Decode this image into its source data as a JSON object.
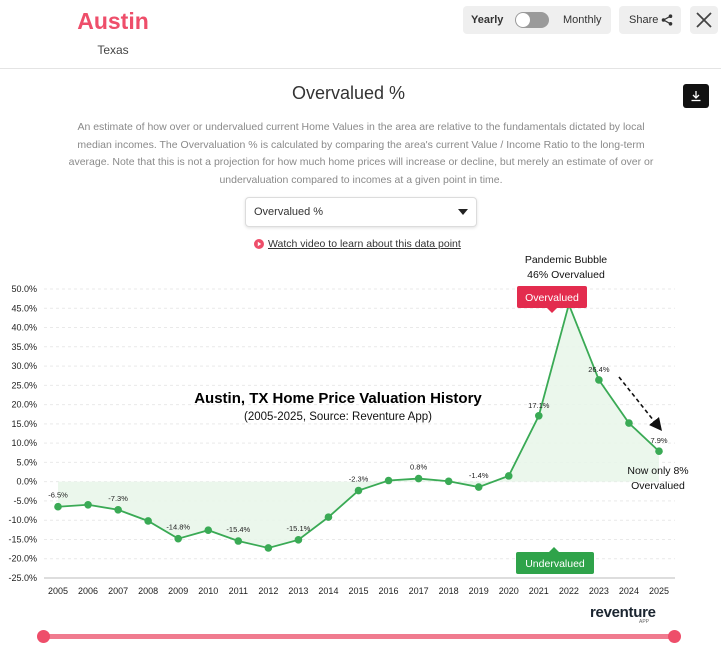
{
  "header": {
    "city": "Austin",
    "state": "Texas",
    "toggle": {
      "left_label": "Yearly",
      "right_label": "Monthly"
    },
    "share_label": "Share"
  },
  "panel": {
    "title": "Overvalued %",
    "description": "An estimate of how over or undervalued current Home Values in the area are relative to the fundamentals dictated by local median incomes. The Overvaluation % is calculated by comparing the area's current Value / Income Ratio to the long-term average. Note that this is not a projection for how much home prices will increase or decline, but merely an estimate of over or undervaluation compared to incomes at a given point in time.",
    "select_value": "Overvalued %",
    "video_link": "Watch video to learn about this data point"
  },
  "chart_data": {
    "type": "line",
    "title": "Austin, TX Home Price Valuation History",
    "subtitle": "(2005-2025, Source: Reventure App)",
    "x": [
      "2005",
      "2006",
      "2007",
      "2008",
      "2009",
      "2010",
      "2011",
      "2012",
      "2013",
      "2014",
      "2015",
      "2016",
      "2017",
      "2018",
      "2019",
      "2020",
      "2021",
      "2022",
      "2023",
      "2024",
      "2025"
    ],
    "values": [
      -6.5,
      -6.0,
      -7.3,
      -10.2,
      -14.8,
      -12.6,
      -15.4,
      -17.2,
      -15.1,
      -9.2,
      -2.3,
      0.3,
      0.8,
      0.1,
      -1.4,
      1.5,
      17.1,
      46.0,
      26.4,
      15.2,
      7.9
    ],
    "data_labels": [
      {
        "i": 0,
        "text": "-6.5%"
      },
      {
        "i": 2,
        "text": "-7.3%"
      },
      {
        "i": 4,
        "text": "-14.8%"
      },
      {
        "i": 6,
        "text": "-15.4%"
      },
      {
        "i": 8,
        "text": "-15.1%"
      },
      {
        "i": 10,
        "text": "-2.3%"
      },
      {
        "i": 12,
        "text": "0.8%"
      },
      {
        "i": 14,
        "text": "-1.4%"
      },
      {
        "i": 16,
        "text": "17.1%"
      },
      {
        "i": 18,
        "text": "26.4%"
      },
      {
        "i": 20,
        "text": "7.9%"
      }
    ],
    "yticks": [
      "50.0%",
      "45.0%",
      "40.0%",
      "35.0%",
      "30.0%",
      "25.0%",
      "20.0%",
      "15.0%",
      "10.0%",
      "5.0%",
      "0.0%",
      "-5.0%",
      "-10.0%",
      "-15.0%",
      "-20.0%",
      "-25.0%"
    ],
    "ytick_values": [
      50,
      45,
      40,
      35,
      30,
      25,
      20,
      15,
      10,
      5,
      0,
      -5,
      -10,
      -15,
      -20,
      -25
    ],
    "ylim": [
      -25,
      50
    ],
    "grid": true,
    "line_color": "#3aaa55",
    "fill_color": "#e7f6e9",
    "annotations": {
      "peak_line1": "Pandemic Bubble",
      "peak_line2": "46% Overvalued",
      "end_line1": "Now only 8%",
      "end_line2": "Overvalued",
      "overvalued_badge": "Overvalued",
      "undervalued_badge": "Undervalued"
    },
    "colors": {
      "overvalued": "#e32c4e",
      "undervalued": "#2fa34a"
    }
  },
  "footer": {
    "brand": "reventure",
    "brand_sub": "APP"
  },
  "colors": {
    "accent": "#ee4e6a"
  }
}
